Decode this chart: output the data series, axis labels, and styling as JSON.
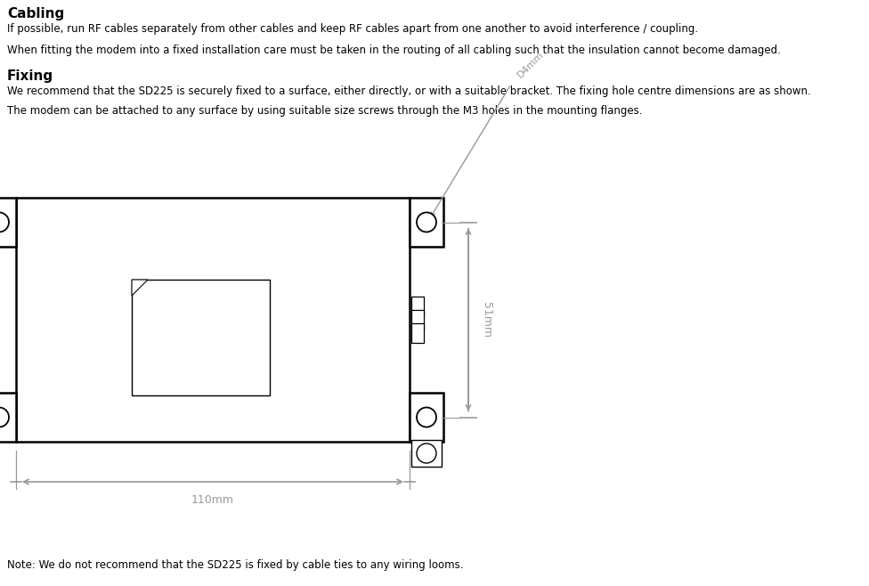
{
  "bg_color": "#ffffff",
  "text_color": "#000000",
  "dim_color": "#999999",
  "title_cabling": "Cabling",
  "para1": "If possible, run RF cables separately from other cables and keep RF cables apart from one another to avoid interference / coupling.",
  "para2": "When fitting the modem into a fixed installation care must be taken in the routing of all cabling such that the insulation cannot become damaged.",
  "title_fixing": "Fixing",
  "para3": "We recommend that the SD225 is securely fixed to a surface, either directly, or with a suitable bracket. The fixing hole centre dimensions are as shown.",
  "para4": "The modem can be attached to any surface by using suitable size screws through the M3 holes in the mounting flanges.",
  "note": "Note: We do not recommend that the SD225 is fixed by cable ties to any wiring looms.",
  "dim_51mm": "51mm",
  "dim_110mm": "110mm",
  "dim_d4mm": "D4mm"
}
